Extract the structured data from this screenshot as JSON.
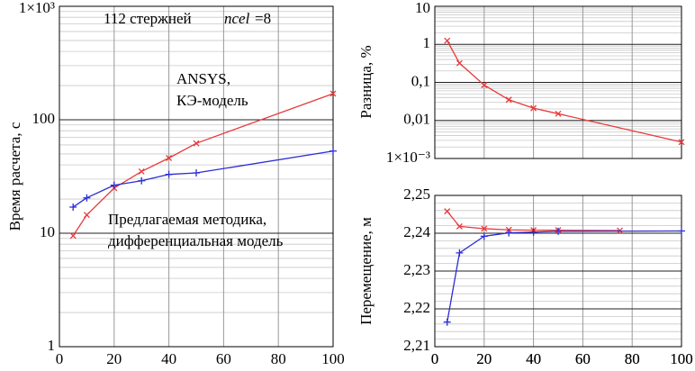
{
  "chart_data": [
    {
      "type": "line",
      "y_label": "Время расчета, с",
      "log_y": true,
      "grid": true,
      "minor_grid": true,
      "xlim": [
        0,
        100
      ],
      "xticks": [
        0,
        20,
        40,
        60,
        80,
        100
      ],
      "ylim": [
        1,
        1000
      ],
      "yticks": [
        1,
        10,
        100,
        {
          "value": 1000,
          "label": "1×10³"
        }
      ],
      "annotations": [
        "112 стержней",
        "ncel",
        "=8",
        "ANSYS,",
        "КЭ-модель",
        "Предлагаемая методика,",
        "дифференциальная модель"
      ],
      "series": [
        {
          "color": "#e8393a",
          "marker": "x",
          "x": [
            5,
            10,
            20,
            30,
            40,
            50,
            100
          ],
          "values": [
            9.5,
            14.5,
            25,
            35,
            46,
            62,
            170
          ]
        },
        {
          "color": "#2c2cd6",
          "marker": "+",
          "x": [
            5,
            10,
            20,
            30,
            40,
            50,
            100
          ],
          "values": [
            17,
            20.5,
            26.5,
            29,
            33,
            34,
            53
          ]
        }
      ]
    },
    {
      "type": "line",
      "y_label": "Разница, %",
      "log_y": true,
      "grid": true,
      "minor_grid": true,
      "xlim": [
        0,
        100
      ],
      "xticks": [
        0,
        20,
        40,
        60,
        80,
        100
      ],
      "ylim": [
        0.001,
        10
      ],
      "yticks": [
        {
          "value": 0.001,
          "label": "1×10⁻³"
        },
        {
          "value": 0.01,
          "label": "0,01"
        },
        {
          "value": 0.1,
          "label": "0,1"
        },
        1,
        10
      ],
      "series": [
        {
          "color": "#e8393a",
          "marker": "x",
          "x": [
            5,
            10,
            20,
            30,
            40,
            50,
            100
          ],
          "values": [
            1.25,
            0.32,
            0.085,
            0.035,
            0.021,
            0.015,
            0.0027
          ]
        }
      ]
    },
    {
      "type": "line",
      "y_label": "Перемещение, м",
      "log_y": false,
      "grid": true,
      "minor_grid": true,
      "xlim": [
        0,
        100
      ],
      "xticks": [
        0,
        20,
        40,
        60,
        80,
        100
      ],
      "ylim": [
        2.21,
        2.25
      ],
      "yticks": [
        {
          "value": 2.21,
          "label": "2,21"
        },
        {
          "value": 2.22,
          "label": "2,22"
        },
        {
          "value": 2.23,
          "label": "2,23"
        },
        {
          "value": 2.24,
          "label": "2,24"
        },
        {
          "value": 2.25,
          "label": "2,25"
        }
      ],
      "series": [
        {
          "color": "#e8393a",
          "marker": "x",
          "x": [
            5,
            10,
            20,
            30,
            40,
            50,
            75
          ],
          "values": [
            2.2458,
            2.2418,
            2.2412,
            2.2409,
            2.2408,
            2.2408,
            2.2407
          ]
        },
        {
          "color": "#2c2cd6",
          "marker": "+",
          "x": [
            5,
            10,
            20,
            30,
            40,
            50,
            100
          ],
          "values": [
            2.2165,
            2.2348,
            2.2392,
            2.2401,
            2.2403,
            2.2405,
            2.2406
          ]
        }
      ]
    }
  ]
}
